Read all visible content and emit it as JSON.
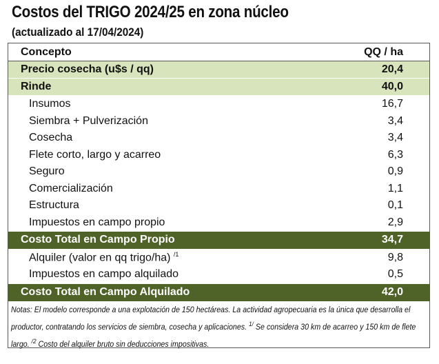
{
  "title": "Costos del TRIGO 2024/25 en zona núcleo",
  "subtitle": "(actualizado al 17/04/2024)",
  "colors": {
    "light_green": "#d8e4bc",
    "dark_green": "#4f6228"
  },
  "header": {
    "concept": "Concepto",
    "unit": "QQ / ha"
  },
  "rows": [
    {
      "label": "Precio cosecha (u$s / qq)",
      "value": "20,4",
      "style": "light"
    },
    {
      "label": "Rinde",
      "value": "40,0",
      "style": "light"
    },
    {
      "label": "Insumos",
      "value": "16,7",
      "style": "ind"
    },
    {
      "label": "Siembra + Pulverización",
      "value": "3,4",
      "style": "ind"
    },
    {
      "label": "Cosecha",
      "value": "3,4",
      "style": "ind"
    },
    {
      "label": "Flete corto, largo y acarreo",
      "value": "6,3",
      "style": "ind"
    },
    {
      "label": "Seguro",
      "value": "0,9",
      "style": "ind"
    },
    {
      "label": "Comercialización",
      "value": "1,1",
      "style": "ind"
    },
    {
      "label": "Estructura",
      "value": "0,1",
      "style": "ind"
    },
    {
      "label": "Impuestos en campo propio",
      "value": "2,9",
      "style": "ind"
    },
    {
      "label": "Costo Total en Campo Propio",
      "value": "34,7",
      "style": "dark"
    },
    {
      "label": "Alquiler (valor en qq trigo/ha)",
      "sup": "/1",
      "value": "9,8",
      "style": "ind"
    },
    {
      "label": "Impuestos en campo alquilado",
      "value": "0,5",
      "style": "ind"
    },
    {
      "label": "Costo Total en Campo Alquilado",
      "value": "42,0",
      "style": "dark"
    }
  ],
  "notes": {
    "part1": "Notas: El modelo corresponde a una explotación de 150 hectáreas. La actividad agropecuaria es la única que desarrolla el productor, contratando los servicios de siembra, cosecha y aplicaciones. ",
    "sup1": "1/",
    "part2": " Se considera 30 km de acarreo y 150 km de flete largo. ",
    "sup2": "/2",
    "part3": " Costo del alquiler bruto sin deducciones impositivas."
  }
}
